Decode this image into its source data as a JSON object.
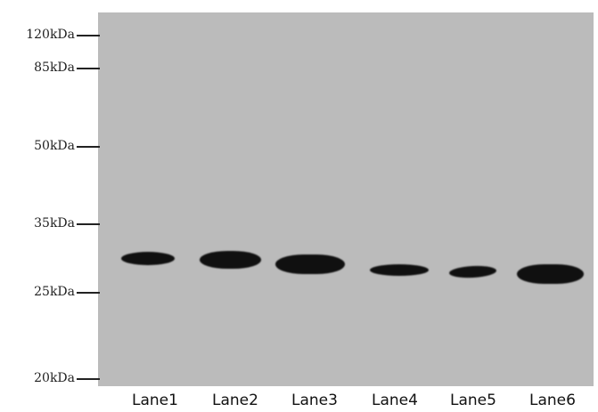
{
  "markers": [
    {
      "label": "120kDa"
    },
    {
      "label": "85kDa"
    },
    {
      "label": "50kDa"
    },
    {
      "label": "35kDa"
    },
    {
      "label": "25kDa"
    },
    {
      "label": "20kDa"
    }
  ],
  "lanes": [
    {
      "label": "Lane1"
    },
    {
      "label": "Lane2"
    },
    {
      "label": "Lane3"
    },
    {
      "label": "Lane4"
    },
    {
      "label": "Lane5"
    },
    {
      "label": "Lane6"
    }
  ],
  "colors": {
    "membrane": "#bbbbbb",
    "band": "#101010",
    "text": "#111111"
  }
}
